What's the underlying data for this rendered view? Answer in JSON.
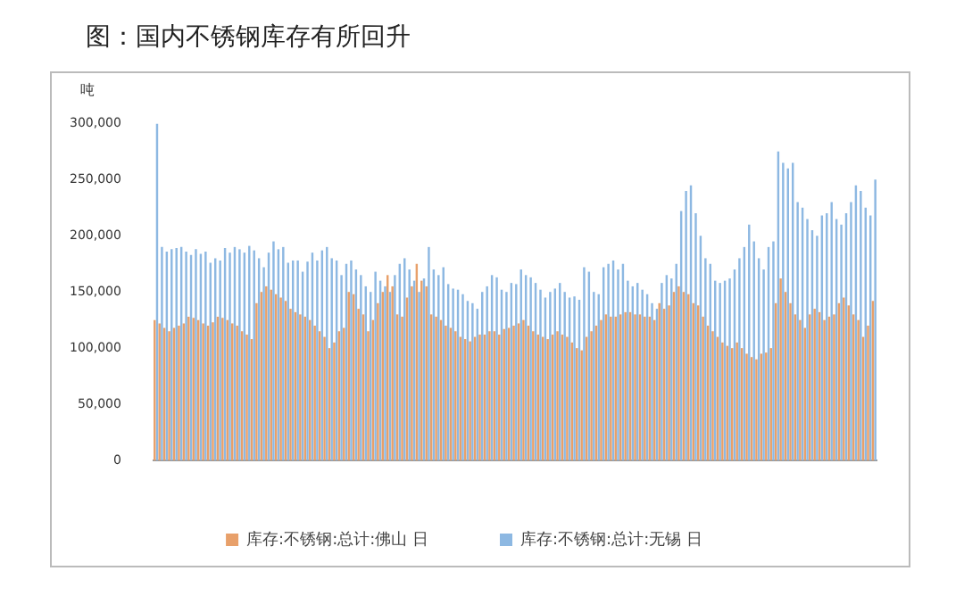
{
  "chart_data": {
    "type": "bar",
    "title": "图：国内不锈钢库存有所回升",
    "ylabel": "吨",
    "categories": [
      null,
      null,
      null,
      null,
      null,
      null,
      null,
      null,
      null,
      null,
      null,
      null,
      null,
      null,
      null,
      null,
      null,
      null,
      null,
      null,
      null,
      null,
      null,
      null,
      null,
      null,
      null,
      null,
      null,
      null,
      null,
      null,
      null,
      null,
      null,
      null,
      null,
      null,
      null,
      null,
      null,
      null,
      null,
      null,
      null,
      null,
      null,
      null,
      null,
      null,
      null,
      null,
      null,
      null,
      null,
      null,
      null,
      null,
      null,
      null,
      null,
      null,
      null,
      null,
      null,
      null,
      null,
      null,
      null,
      null,
      null,
      null,
      null,
      null,
      null,
      null,
      null,
      null,
      null,
      null,
      null,
      null,
      null,
      null,
      null,
      null,
      null,
      null,
      null,
      null,
      null,
      null,
      null,
      null,
      null,
      null,
      null,
      null,
      null,
      null,
      null,
      null,
      null,
      null,
      null,
      null,
      null,
      null,
      null,
      null,
      null,
      null,
      null,
      null,
      null,
      null,
      null,
      null,
      null,
      null,
      null,
      null,
      null,
      null,
      null,
      null,
      null,
      null,
      null,
      null,
      null,
      null,
      null,
      null,
      null,
      null,
      null,
      null,
      null,
      null,
      null,
      null,
      null,
      null,
      null,
      null,
      null,
      null,
      null
    ],
    "series": [
      {
        "name": "库存:不锈钢:总计:无锡 日",
        "color": "#8db8e2",
        "values": [
          300000,
          190000,
          186000,
          188000,
          189000,
          190000,
          186000,
          183000,
          188000,
          184000,
          186000,
          176000,
          180000,
          178000,
          189000,
          185000,
          190000,
          188000,
          185000,
          191000,
          187000,
          180000,
          172000,
          185000,
          195000,
          188000,
          190000,
          176000,
          178000,
          178000,
          168000,
          177000,
          185000,
          178000,
          187000,
          190000,
          180000,
          178000,
          165000,
          175000,
          178000,
          170000,
          165000,
          155000,
          150000,
          168000,
          160000,
          155000,
          150000,
          165000,
          175000,
          180000,
          170000,
          160000,
          150000,
          162000,
          190000,
          170000,
          165000,
          172000,
          157000,
          153000,
          152000,
          148000,
          142000,
          140000,
          135000,
          150000,
          155000,
          165000,
          163000,
          152000,
          150000,
          158000,
          157000,
          170000,
          165000,
          163000,
          158000,
          152000,
          145000,
          150000,
          153000,
          158000,
          150000,
          145000,
          146000,
          143000,
          172000,
          168000,
          150000,
          148000,
          172000,
          175000,
          178000,
          170000,
          175000,
          160000,
          155000,
          158000,
          152000,
          148000,
          140000,
          135000,
          158000,
          165000,
          162000,
          175000,
          222000,
          240000,
          245000,
          220000,
          200000,
          180000,
          175000,
          160000,
          158000,
          160000,
          162000,
          170000,
          180000,
          190000,
          210000,
          195000,
          180000,
          170000,
          190000,
          195000,
          275000,
          265000,
          260000,
          265000,
          230000,
          225000,
          215000,
          205000,
          200000,
          218000,
          220000,
          230000,
          215000,
          210000,
          220000,
          230000,
          245000,
          240000,
          225000,
          218000,
          250000
        ]
      },
      {
        "name": "库存:不锈钢:总计:佛山 日",
        "color": "#e8a06a",
        "values": [
          125000,
          122000,
          118000,
          115000,
          118000,
          120000,
          122000,
          128000,
          127000,
          125000,
          122000,
          120000,
          123000,
          128000,
          127000,
          125000,
          122000,
          120000,
          115000,
          112000,
          108000,
          140000,
          150000,
          155000,
          152000,
          148000,
          145000,
          142000,
          135000,
          132000,
          130000,
          128000,
          125000,
          120000,
          115000,
          110000,
          100000,
          105000,
          115000,
          118000,
          150000,
          148000,
          135000,
          130000,
          115000,
          125000,
          140000,
          150000,
          165000,
          155000,
          130000,
          128000,
          145000,
          155000,
          175000,
          160000,
          155000,
          130000,
          128000,
          125000,
          120000,
          118000,
          115000,
          110000,
          108000,
          106000,
          110000,
          112000,
          112000,
          115000,
          115000,
          112000,
          117000,
          118000,
          120000,
          122000,
          125000,
          120000,
          115000,
          112000,
          110000,
          108000,
          112000,
          115000,
          112000,
          110000,
          105000,
          100000,
          98000,
          110000,
          115000,
          120000,
          125000,
          130000,
          128000,
          128000,
          130000,
          132000,
          132000,
          130000,
          130000,
          128000,
          128000,
          125000,
          140000,
          135000,
          138000,
          150000,
          155000,
          150000,
          148000,
          140000,
          138000,
          128000,
          120000,
          115000,
          110000,
          105000,
          102000,
          100000,
          105000,
          100000,
          95000,
          92000,
          90000,
          95000,
          96000,
          100000,
          140000,
          162000,
          150000,
          140000,
          130000,
          125000,
          118000,
          130000,
          135000,
          132000,
          125000,
          128000,
          130000,
          140000,
          145000,
          138000,
          130000,
          125000,
          110000,
          120000,
          142000
        ]
      }
    ],
    "ylim": [
      0,
      300000
    ],
    "yticks": [
      {
        "value": 0,
        "label": "0"
      },
      {
        "value": 50000,
        "label": "50,000"
      },
      {
        "value": 100000,
        "label": "100,000"
      },
      {
        "value": 150000,
        "label": "150,000"
      },
      {
        "value": 200000,
        "label": "200,000"
      },
      {
        "value": 250000,
        "label": "250,000"
      },
      {
        "value": 300000,
        "label": "300,000"
      }
    ],
    "grid": false,
    "legend": "bottom"
  }
}
